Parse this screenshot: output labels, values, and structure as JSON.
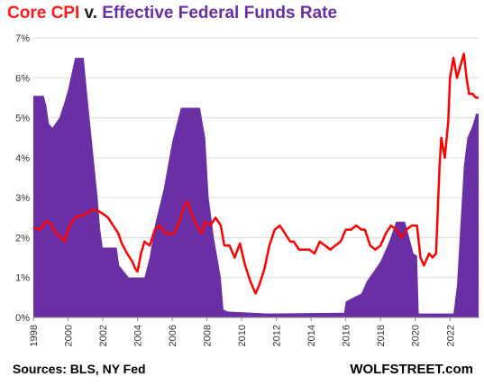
{
  "title": {
    "part1": "Core CPI",
    "part2": " v. ",
    "part3": "Effective Federal Funds Rate"
  },
  "source": "Sources: BLS, NY Fed",
  "brand": "WOLFSTREET.com",
  "colors": {
    "core_cpi": "#ff0000",
    "fed_funds": "#6a2fa5",
    "grid": "#d9d9d9"
  },
  "chart_data": {
    "type": "area",
    "xlim": [
      1998,
      2023.7
    ],
    "ylim": [
      0,
      7
    ],
    "y_ticks": [
      {
        "value": 0,
        "label": "0%"
      },
      {
        "value": 1,
        "label": "1%"
      },
      {
        "value": 2,
        "label": "2%"
      },
      {
        "value": 3,
        "label": "3%"
      },
      {
        "value": 4,
        "label": "4%"
      },
      {
        "value": 5,
        "label": "5%"
      },
      {
        "value": 6,
        "label": "6%"
      },
      {
        "value": 7,
        "label": "7%"
      }
    ],
    "x_ticks": [
      "1998",
      "2000",
      "2002",
      "2004",
      "2006",
      "2008",
      "2010",
      "2012",
      "2014",
      "2016",
      "2018",
      "2020",
      "2022"
    ],
    "grid": true,
    "series": [
      {
        "name": "Effective Federal Funds Rate",
        "style": "area",
        "points": [
          [
            1998,
            5.55
          ],
          [
            1998.6,
            5.55
          ],
          [
            1998.75,
            5.3
          ],
          [
            1998.9,
            4.85
          ],
          [
            1999.1,
            4.75
          ],
          [
            1999.5,
            5.0
          ],
          [
            1999.8,
            5.4
          ],
          [
            2000.0,
            5.7
          ],
          [
            2000.4,
            6.5
          ],
          [
            2000.9,
            6.5
          ],
          [
            2001.1,
            5.6
          ],
          [
            2001.4,
            4.3
          ],
          [
            2001.7,
            3.0
          ],
          [
            2001.85,
            2.2
          ],
          [
            2002.0,
            1.75
          ],
          [
            2002.8,
            1.75
          ],
          [
            2002.95,
            1.3
          ],
          [
            2003.5,
            1.0
          ],
          [
            2004.4,
            1.0
          ],
          [
            2004.7,
            1.5
          ],
          [
            2005.0,
            2.3
          ],
          [
            2005.5,
            3.2
          ],
          [
            2006.0,
            4.4
          ],
          [
            2006.5,
            5.25
          ],
          [
            2007.6,
            5.25
          ],
          [
            2007.9,
            4.5
          ],
          [
            2008.1,
            3.0
          ],
          [
            2008.4,
            2.0
          ],
          [
            2008.8,
            1.0
          ],
          [
            2008.95,
            0.2
          ],
          [
            2009.2,
            0.15
          ],
          [
            2011.5,
            0.1
          ],
          [
            2015.9,
            0.12
          ],
          [
            2016.0,
            0.4
          ],
          [
            2016.9,
            0.6
          ],
          [
            2017.2,
            0.9
          ],
          [
            2017.6,
            1.15
          ],
          [
            2018.0,
            1.4
          ],
          [
            2018.5,
            1.9
          ],
          [
            2018.9,
            2.4
          ],
          [
            2019.4,
            2.4
          ],
          [
            2019.6,
            2.1
          ],
          [
            2019.9,
            1.6
          ],
          [
            2020.1,
            1.55
          ],
          [
            2020.2,
            0.1
          ],
          [
            2022.2,
            0.1
          ],
          [
            2022.4,
            0.8
          ],
          [
            2022.6,
            2.3
          ],
          [
            2022.8,
            3.8
          ],
          [
            2023.0,
            4.5
          ],
          [
            2023.3,
            4.8
          ],
          [
            2023.5,
            5.1
          ],
          [
            2023.65,
            5.1
          ]
        ]
      },
      {
        "name": "Core CPI",
        "style": "line",
        "points": [
          [
            1998,
            2.25
          ],
          [
            1998.4,
            2.2
          ],
          [
            1998.7,
            2.4
          ],
          [
            1999.0,
            2.35
          ],
          [
            1999.3,
            2.1
          ],
          [
            1999.6,
            2.0
          ],
          [
            1999.8,
            1.9
          ],
          [
            2000.0,
            2.2
          ],
          [
            2000.3,
            2.45
          ],
          [
            2000.6,
            2.55
          ],
          [
            2000.9,
            2.55
          ],
          [
            2001.2,
            2.65
          ],
          [
            2001.5,
            2.7
          ],
          [
            2001.8,
            2.65
          ],
          [
            2002.0,
            2.6
          ],
          [
            2002.3,
            2.5
          ],
          [
            2002.6,
            2.3
          ],
          [
            2002.9,
            2.1
          ],
          [
            2003.1,
            1.85
          ],
          [
            2003.4,
            1.6
          ],
          [
            2003.7,
            1.4
          ],
          [
            2003.9,
            1.2
          ],
          [
            2004.0,
            1.15
          ],
          [
            2004.2,
            1.6
          ],
          [
            2004.4,
            1.9
          ],
          [
            2004.7,
            1.8
          ],
          [
            2005.0,
            2.2
          ],
          [
            2005.3,
            2.3
          ],
          [
            2005.6,
            2.1
          ],
          [
            2005.9,
            2.1
          ],
          [
            2006.1,
            2.1
          ],
          [
            2006.4,
            2.4
          ],
          [
            2006.7,
            2.8
          ],
          [
            2006.9,
            2.9
          ],
          [
            2007.1,
            2.6
          ],
          [
            2007.4,
            2.3
          ],
          [
            2007.7,
            2.1
          ],
          [
            2007.9,
            2.4
          ],
          [
            2008.2,
            2.3
          ],
          [
            2008.5,
            2.5
          ],
          [
            2008.8,
            2.3
          ],
          [
            2009.0,
            1.8
          ],
          [
            2009.3,
            1.8
          ],
          [
            2009.6,
            1.5
          ],
          [
            2009.9,
            1.85
          ],
          [
            2010.2,
            1.3
          ],
          [
            2010.5,
            0.9
          ],
          [
            2010.8,
            0.6
          ],
          [
            2011.0,
            0.8
          ],
          [
            2011.3,
            1.2
          ],
          [
            2011.6,
            1.8
          ],
          [
            2011.9,
            2.2
          ],
          [
            2012.2,
            2.3
          ],
          [
            2012.5,
            2.1
          ],
          [
            2012.8,
            1.9
          ],
          [
            2013.0,
            1.9
          ],
          [
            2013.3,
            1.7
          ],
          [
            2013.6,
            1.7
          ],
          [
            2013.9,
            1.7
          ],
          [
            2014.2,
            1.6
          ],
          [
            2014.5,
            1.9
          ],
          [
            2014.8,
            1.8
          ],
          [
            2015.1,
            1.7
          ],
          [
            2015.4,
            1.8
          ],
          [
            2015.7,
            1.9
          ],
          [
            2016.0,
            2.2
          ],
          [
            2016.3,
            2.2
          ],
          [
            2016.6,
            2.3
          ],
          [
            2016.9,
            2.2
          ],
          [
            2017.1,
            2.2
          ],
          [
            2017.4,
            1.8
          ],
          [
            2017.7,
            1.7
          ],
          [
            2018.0,
            1.8
          ],
          [
            2018.3,
            2.1
          ],
          [
            2018.6,
            2.3
          ],
          [
            2018.9,
            2.2
          ],
          [
            2019.2,
            2.0
          ],
          [
            2019.5,
            2.2
          ],
          [
            2019.8,
            2.3
          ],
          [
            2020.1,
            2.3
          ],
          [
            2020.3,
            1.5
          ],
          [
            2020.5,
            1.3
          ],
          [
            2020.8,
            1.6
          ],
          [
            2021.0,
            1.5
          ],
          [
            2021.2,
            1.6
          ],
          [
            2021.4,
            3.8
          ],
          [
            2021.5,
            4.5
          ],
          [
            2021.7,
            4.0
          ],
          [
            2021.9,
            4.9
          ],
          [
            2022.0,
            6.0
          ],
          [
            2022.2,
            6.5
          ],
          [
            2022.4,
            6.0
          ],
          [
            2022.6,
            6.3
          ],
          [
            2022.8,
            6.6
          ],
          [
            2022.95,
            6.0
          ],
          [
            2023.1,
            5.6
          ],
          [
            2023.3,
            5.6
          ],
          [
            2023.5,
            5.5
          ],
          [
            2023.65,
            5.5
          ]
        ]
      }
    ]
  }
}
